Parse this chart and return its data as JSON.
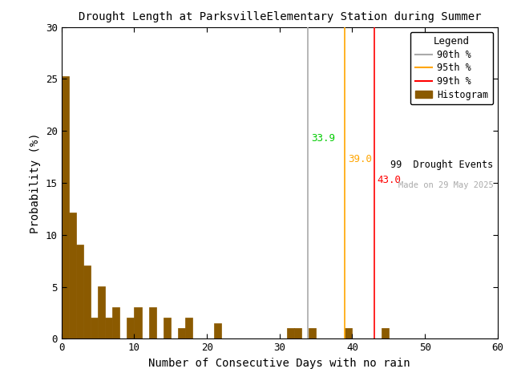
{
  "title": "Drought Length at ParksvilleElementary Station during Summer",
  "xlabel": "Number of Consecutive Days with no rain",
  "ylabel": "Probability (%)",
  "xlim": [
    0,
    60
  ],
  "ylim": [
    0,
    30
  ],
  "xticks": [
    0,
    10,
    20,
    30,
    40,
    50,
    60
  ],
  "yticks": [
    0,
    5,
    10,
    15,
    20,
    25,
    30
  ],
  "bar_color": "#8B5A00",
  "bar_edgecolor": "#8B5A00",
  "bin_width": 1,
  "bar_heights": [
    25.25,
    12.12,
    9.09,
    7.07,
    2.02,
    5.05,
    2.02,
    3.03,
    0.0,
    2.02,
    3.03,
    0.0,
    3.03,
    0.0,
    2.02,
    0.0,
    1.01,
    2.02,
    0.0,
    0.0,
    0.0,
    1.51,
    0.0,
    0.0,
    0.0,
    0.0,
    0.0,
    0.0,
    0.0,
    0.0,
    0.0,
    1.01,
    1.01,
    0.0,
    1.01,
    0.0,
    0.0,
    0.0,
    0.0,
    1.01,
    0.0,
    0.0,
    0.0,
    0.0,
    1.01,
    0.0,
    0.0,
    0.0,
    0.0,
    0.0,
    0.0,
    0.0,
    0.0,
    0.0,
    0.0,
    0.0,
    0.0,
    0.0,
    0.0,
    0.0
  ],
  "p90": 33.9,
  "p95": 39.0,
  "p99": 43.0,
  "p90_line_color": "#AAAAAA",
  "p90_label_color": "#00CC00",
  "p95_color": "#FFA500",
  "p99_color": "#FF0000",
  "p90_legend_color": "#AAAAAA",
  "n_events": 99,
  "watermark": "Made on 29 May 2025",
  "watermark_color": "#AAAAAA",
  "background_color": "#FFFFFF",
  "legend_title": "Legend",
  "legend_90_label": "90th %",
  "legend_95_label": "95th %",
  "legend_99_label": "99th %",
  "legend_hist_label": "Histogram"
}
